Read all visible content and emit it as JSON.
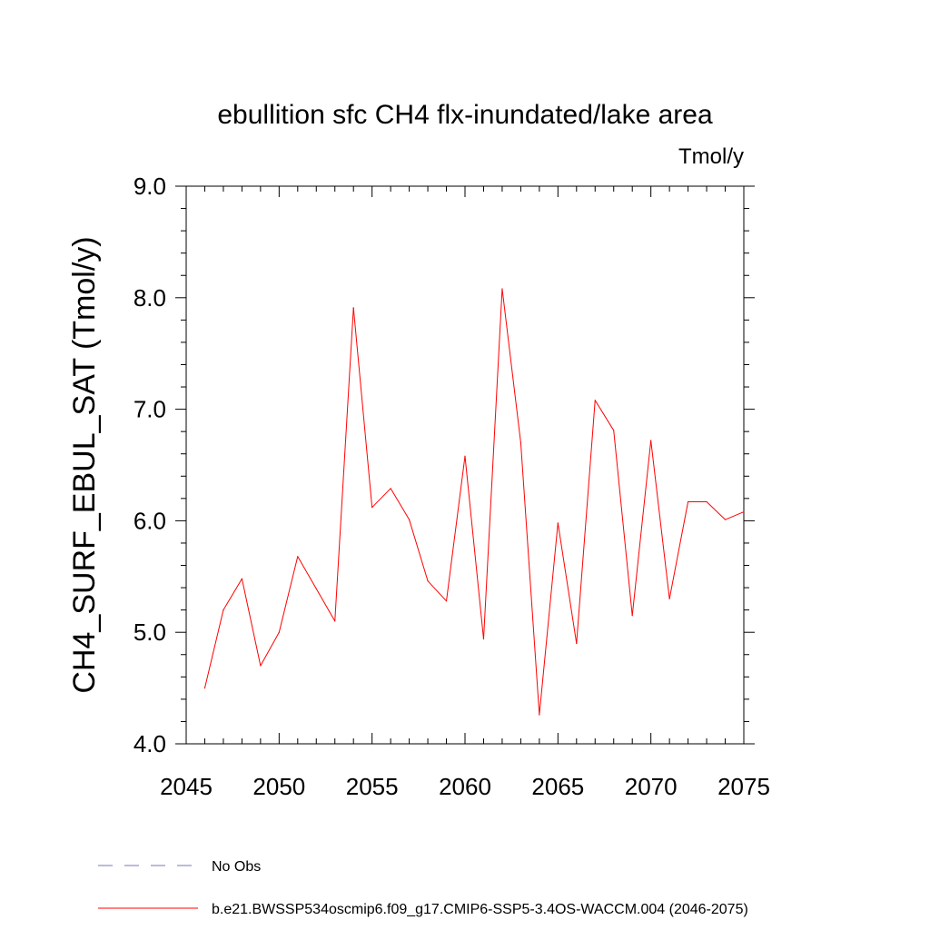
{
  "chart_data": {
    "type": "line",
    "title": "ebullition sfc CH4 flx-inundated/lake area",
    "units": "Tmol/y",
    "ylabel": "CH4_SURF_EBUL_SAT  (Tmol/y)",
    "xlabel": "",
    "xlim": [
      2045,
      2075
    ],
    "ylim": [
      4.0,
      9.0
    ],
    "xticks": [
      2045,
      2050,
      2055,
      2060,
      2065,
      2070,
      2075
    ],
    "xtick_labels": [
      "2045",
      "2050",
      "2055",
      "2060",
      "2065",
      "2070",
      "2075"
    ],
    "yticks": [
      4.0,
      5.0,
      6.0,
      7.0,
      8.0,
      9.0
    ],
    "ytick_labels": [
      "4.0",
      "5.0",
      "6.0",
      "7.0",
      "8.0",
      "9.0"
    ],
    "grid": false,
    "series": [
      {
        "name": "b.e21.BWSSP534oscmip6.f09_g17.CMIP6-SSP5-3.4OS-WACCM.004 (2046-2075)",
        "color": "#ff0000",
        "x": [
          2046,
          2047,
          2048,
          2049,
          2050,
          2051,
          2052,
          2053,
          2054,
          2055,
          2056,
          2057,
          2058,
          2059,
          2060,
          2061,
          2062,
          2063,
          2064,
          2065,
          2066,
          2067,
          2068,
          2069,
          2070,
          2071,
          2072,
          2073,
          2074,
          2075
        ],
        "values": [
          4.5,
          5.2,
          5.48,
          4.7,
          5.0,
          5.68,
          5.39,
          5.1,
          7.91,
          6.12,
          6.29,
          6.01,
          5.46,
          5.28,
          6.58,
          4.94,
          8.08,
          6.7,
          4.26,
          5.98,
          4.9,
          7.08,
          6.81,
          5.15,
          6.72,
          5.3,
          6.17,
          6.17,
          6.01,
          6.08
        ]
      }
    ],
    "legend": [
      {
        "label": "No Obs",
        "style": "dashed",
        "color": "#7777bb"
      },
      {
        "label": "b.e21.BWSSP534oscmip6.f09_g17.CMIP6-SSP5-3.4OS-WACCM.004 (2046-2075)",
        "style": "solid",
        "color": "#ff0000"
      }
    ],
    "legend_position": "bottom-left"
  }
}
